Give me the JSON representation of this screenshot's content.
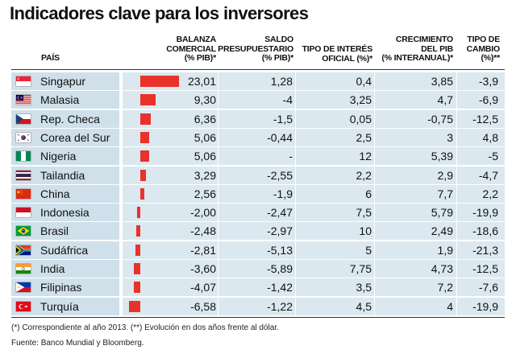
{
  "title": "Indicadores clave para los inversores",
  "headers": {
    "pais": "PAÍS",
    "balanza_1": "BALANZA",
    "balanza_2": "COMERCIAL",
    "balanza_3": "(% PIB)*",
    "saldo_1": "SALDO",
    "saldo_2": "PRESUPUESTARIO",
    "saldo_3": "(% PIB)*",
    "tipo_interes_1": "TIPO DE INTERÉS",
    "tipo_interes_2": "OFICIAL (%)*",
    "crecimiento_1": "CRECIMIENTO",
    "crecimiento_2": "DEL PIB",
    "crecimiento_3": "(% INTERANUAL)*",
    "tipo_cambio_1": "TIPO DE",
    "tipo_cambio_2": "CAMBIO",
    "tipo_cambio_3": "(%)**"
  },
  "footnote": "(*) Correspondiente al año 2013. (**) Evolución en dos años frente al dólar.",
  "source": "Fuente: Banco Mundial y Bloomberg.",
  "colors": {
    "bar": "#e8322a",
    "row_bg": "#dbe8f0",
    "name_bg": "#cfe0ea"
  },
  "chart_data": {
    "type": "table",
    "title": "Indicadores clave para los inversores",
    "columns": [
      "BALANZA COMERCIAL (% PIB)*",
      "SALDO PRESUPUESTARIO (% PIB)*",
      "TIPO DE INTERÉS OFICIAL (%)*",
      "CRECIMIENTO DEL PIB (% INTERANUAL)*",
      "TIPO DE CAMBIO (%)**"
    ],
    "rows": [
      {
        "country": "Singapur",
        "flag": "singapore-flag",
        "balanza": 23.01,
        "balanza_label": "23,01",
        "saldo": "1,28",
        "tipo_interes": "0,4",
        "crecimiento": "3,85",
        "tipo_cambio": "-3,9"
      },
      {
        "country": "Malasia",
        "flag": "malaysia-flag",
        "balanza": 9.3,
        "balanza_label": "9,30",
        "saldo": "-4",
        "tipo_interes": "3,25",
        "crecimiento": "4,7",
        "tipo_cambio": "-6,9"
      },
      {
        "country": "Rep. Checa",
        "flag": "czech-flag",
        "balanza": 6.36,
        "balanza_label": "6,36",
        "saldo": "-1,5",
        "tipo_interes": "0,05",
        "crecimiento": "-0,75",
        "tipo_cambio": "-12,5"
      },
      {
        "country": "Corea del Sur",
        "flag": "south-korea-flag",
        "balanza": 5.06,
        "balanza_label": "5,06",
        "saldo": "-0,44",
        "tipo_interes": "2,5",
        "crecimiento": "3",
        "tipo_cambio": "4,8"
      },
      {
        "country": "Nigeria",
        "flag": "nigeria-flag",
        "balanza": 5.06,
        "balanza_label": "5,06",
        "saldo": "-",
        "tipo_interes": "12",
        "crecimiento": "5,39",
        "tipo_cambio": "-5"
      },
      {
        "country": "Tailandia",
        "flag": "thailand-flag",
        "balanza": 3.29,
        "balanza_label": "3,29",
        "saldo": "-2,55",
        "tipo_interes": "2,2",
        "crecimiento": "2,9",
        "tipo_cambio": "-4,7"
      },
      {
        "country": "China",
        "flag": "china-flag",
        "balanza": 2.56,
        "balanza_label": "2,56",
        "saldo": "-1,9",
        "tipo_interes": "6",
        "crecimiento": "7,7",
        "tipo_cambio": "2,2"
      },
      {
        "country": "Indonesia",
        "flag": "indonesia-flag",
        "balanza": -2.0,
        "balanza_label": "-2,00",
        "saldo": "-2,47",
        "tipo_interes": "7,5",
        "crecimiento": "5,79",
        "tipo_cambio": "-19,9"
      },
      {
        "country": "Brasil",
        "flag": "brazil-flag",
        "balanza": -2.48,
        "balanza_label": "-2,48",
        "saldo": "-2,97",
        "tipo_interes": "10",
        "crecimiento": "2,49",
        "tipo_cambio": "-18,6"
      },
      {
        "country": "Sudáfrica",
        "flag": "south-africa-flag",
        "balanza": -2.81,
        "balanza_label": "-2,81",
        "saldo": "-5,13",
        "tipo_interes": "5",
        "crecimiento": "1,9",
        "tipo_cambio": "-21,3"
      },
      {
        "country": "India",
        "flag": "india-flag",
        "balanza": -3.6,
        "balanza_label": "-3,60",
        "saldo": "-5,89",
        "tipo_interes": "7,75",
        "crecimiento": "4,73",
        "tipo_cambio": "-12,5"
      },
      {
        "country": "Filipinas",
        "flag": "philippines-flag",
        "balanza": -4.07,
        "balanza_label": "-4,07",
        "saldo": "-1,42",
        "tipo_interes": "3,5",
        "crecimiento": "7,2",
        "tipo_cambio": "-7,6"
      },
      {
        "country": "Turquía",
        "flag": "turkey-flag",
        "balanza": -6.58,
        "balanza_label": "-6,58",
        "saldo": "-1,22",
        "tipo_interes": "4,5",
        "crecimiento": "4",
        "tipo_cambio": "-19,9"
      }
    ]
  }
}
